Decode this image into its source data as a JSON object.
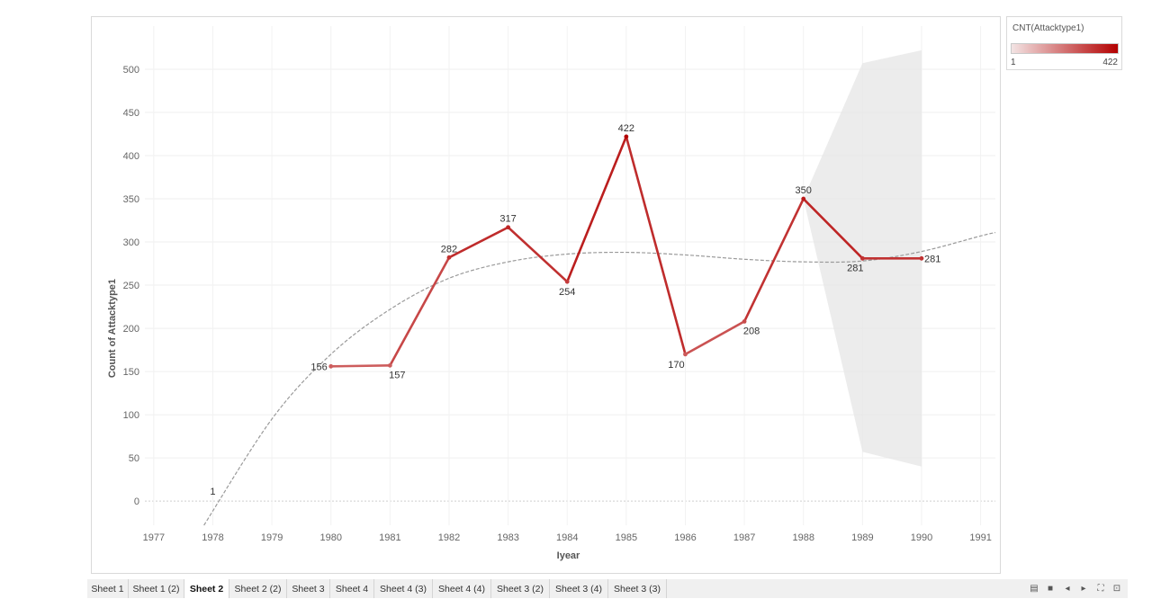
{
  "chart_data": {
    "type": "line",
    "xlabel": "Iyear",
    "ylabel": "Count of Attacktype1",
    "x_ticks": [
      1977,
      1978,
      1979,
      1980,
      1981,
      1982,
      1983,
      1984,
      1985,
      1986,
      1987,
      1988,
      1989,
      1990,
      1991
    ],
    "y_ticks": [
      0,
      50,
      100,
      150,
      200,
      250,
      300,
      350,
      400,
      450,
      500
    ],
    "xlim": [
      1976.85,
      1991.25
    ],
    "ylim": [
      -28,
      550
    ],
    "grid": true,
    "points": [
      {
        "x": 1980,
        "y": 156,
        "label": "156"
      },
      {
        "x": 1981,
        "y": 157,
        "label": "157"
      },
      {
        "x": 1982,
        "y": 282,
        "label": "282"
      },
      {
        "x": 1983,
        "y": 317,
        "label": "317"
      },
      {
        "x": 1984,
        "y": 254,
        "label": "254"
      },
      {
        "x": 1985,
        "y": 422,
        "label": "422"
      },
      {
        "x": 1986,
        "y": 170,
        "label": "170"
      },
      {
        "x": 1987,
        "y": 208,
        "label": "208"
      },
      {
        "x": 1988,
        "y": 350,
        "label": "350"
      },
      {
        "x": 1989,
        "y": 281,
        "label": "281"
      },
      {
        "x": 1990,
        "y": 281,
        "label": "281"
      }
    ],
    "outlier_point": {
      "x": 1978,
      "y": 1,
      "label": "1"
    },
    "trend_line": [
      {
        "x": 1977.85,
        "y": -28
      },
      {
        "x": 1979,
        "y": 95
      },
      {
        "x": 1980,
        "y": 170
      },
      {
        "x": 1981,
        "y": 222
      },
      {
        "x": 1982,
        "y": 258
      },
      {
        "x": 1983,
        "y": 277
      },
      {
        "x": 1984,
        "y": 286
      },
      {
        "x": 1985,
        "y": 288
      },
      {
        "x": 1986,
        "y": 285
      },
      {
        "x": 1987,
        "y": 280
      },
      {
        "x": 1988,
        "y": 277
      },
      {
        "x": 1989,
        "y": 278
      },
      {
        "x": 1990,
        "y": 289
      },
      {
        "x": 1991,
        "y": 307
      },
      {
        "x": 1991.25,
        "y": 311
      }
    ],
    "forecast_band": [
      {
        "x": 1988,
        "low": 350,
        "high": 350
      },
      {
        "x": 1989,
        "low": 57,
        "high": 507
      },
      {
        "x": 1990,
        "low": 40,
        "high": 522
      }
    ],
    "color_scale": {
      "min": 1,
      "max": 422,
      "low_color": "#f3e4e4",
      "high_color": "#b30000"
    }
  },
  "legend": {
    "title": "CNT(Attacktype1)",
    "min_label": "1",
    "max_label": "422"
  },
  "tabs": [
    {
      "label": "Sheet 1",
      "active": false
    },
    {
      "label": "Sheet 1 (2)",
      "active": false
    },
    {
      "label": "Sheet 2",
      "active": true
    },
    {
      "label": "Sheet 2 (2)",
      "active": false
    },
    {
      "label": "Sheet 3",
      "active": false
    },
    {
      "label": "Sheet 4",
      "active": false
    },
    {
      "label": "Sheet 4 (3)",
      "active": false
    },
    {
      "label": "Sheet 4 (4)",
      "active": false
    },
    {
      "label": "Sheet 3 (2)",
      "active": false
    },
    {
      "label": "Sheet 3 (4)",
      "active": false
    },
    {
      "label": "Sheet 3 (3)",
      "active": false
    }
  ],
  "controls": {
    "grid_view_icon": "▤",
    "sheet_view_icon": "■",
    "prev_icon": "◂",
    "next_icon": "▸",
    "fullscreen_icon": "⛶",
    "present_icon": "⊡"
  }
}
